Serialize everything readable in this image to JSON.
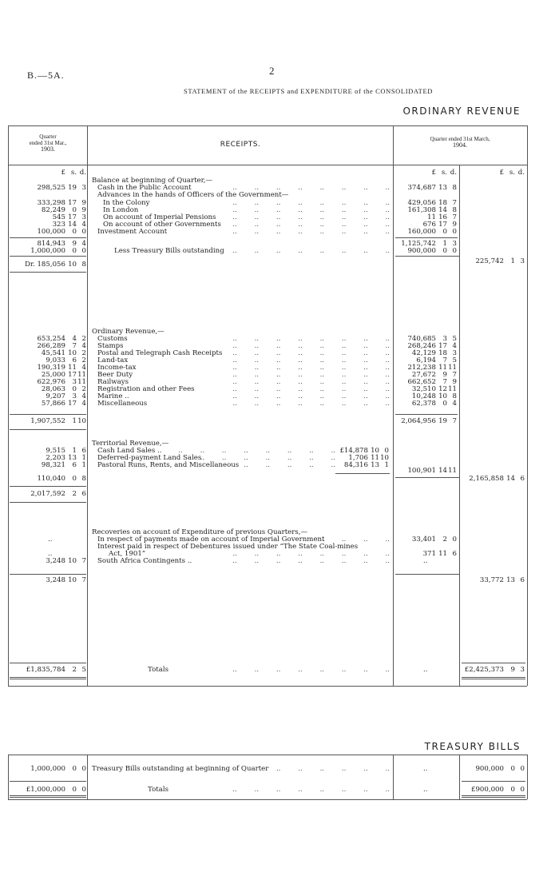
{
  "page": {
    "ref": "B.—5A.",
    "number": "2",
    "statement": "STATEMENT of the RECEIPTS and EXPENDITURE of the CONSOLIDATED",
    "section": "ORDINARY REVENUE"
  },
  "header": {
    "col1": [
      "Quarter",
      "ended 31st Mar.,",
      "1903."
    ],
    "col2": "RECEIPTS.",
    "col3": [
      "Quarter ended 31st March,",
      "1904."
    ],
    "currency": [
      "£",
      "s.",
      "d."
    ]
  },
  "rows": [
    {
      "label": "Balance at beginning of Quarter,—",
      "indent": 0
    },
    {
      "label": "Cash in the Public Account",
      "indent": 1,
      "dots": true,
      "c1": [
        "298,525",
        "19",
        "3"
      ],
      "c3": [
        "374,687",
        "13",
        "8"
      ]
    },
    {
      "label": "Advances in the hands of Officers of the Government—",
      "indent": 1
    },
    {
      "label": "In the Colony",
      "indent": 2,
      "dots": true,
      "c1": [
        "333,298",
        "17",
        "9"
      ],
      "c3": [
        "429,056",
        "18",
        "7"
      ]
    },
    {
      "label": "In London",
      "indent": 2,
      "dots": true,
      "c1": [
        "82,249",
        "0",
        "9"
      ],
      "c3": [
        "161,308",
        "14",
        "8"
      ]
    },
    {
      "label": "On account of Imperial Pensions",
      "indent": 2,
      "dots": true,
      "c1": [
        "545",
        "17",
        "3"
      ],
      "c3": [
        "11",
        "16",
        "7"
      ]
    },
    {
      "label": "On account of other Governments",
      "indent": 2,
      "dots": true,
      "c1": [
        "323",
        "14",
        "4"
      ],
      "c3": [
        "676",
        "17",
        "9"
      ]
    },
    {
      "label": "Investment Account",
      "indent": 1,
      "dots": true,
      "c1": [
        "100,000",
        "0",
        "0"
      ],
      "c3": [
        "160,000",
        "0",
        "0"
      ]
    },
    {
      "label": "",
      "c1": [
        "814,943",
        "9",
        "4"
      ],
      "c3": [
        "1,125,742",
        "1",
        "3"
      ]
    },
    {
      "label": "Less Treasury Bills outstanding",
      "indent": 4,
      "dots": true,
      "c1": [
        "1,000,000",
        "0",
        "0"
      ],
      "c3": [
        "900,000",
        "0",
        "0"
      ]
    },
    {
      "label": "",
      "c4": [
        "225,742",
        "1",
        "3"
      ]
    },
    {
      "label": "",
      "c1": [
        "Dr. 185,056",
        "10",
        "8"
      ]
    },
    {
      "label": "Ordinary Revenue,—",
      "indent": 0
    },
    {
      "label": "Customs",
      "indent": 1,
      "dots": true,
      "c1": [
        "653,254",
        "4",
        "2"
      ],
      "c3": [
        "740,685",
        "3",
        "5"
      ]
    },
    {
      "label": "Stamps",
      "indent": 1,
      "dots": true,
      "c1": [
        "266,289",
        "7",
        "4"
      ],
      "c3": [
        "268,246",
        "17",
        "4"
      ]
    },
    {
      "label": "Postal and Telegraph Cash Receipts",
      "indent": 1,
      "dots": true,
      "c1": [
        "45,541",
        "10",
        "2"
      ],
      "c3": [
        "42,129",
        "18",
        "3"
      ]
    },
    {
      "label": "Land-tax",
      "indent": 1,
      "dots": true,
      "c1": [
        "9,033",
        "6",
        "2"
      ],
      "c3": [
        "6,194",
        "7",
        "5"
      ]
    },
    {
      "label": "Income-tax",
      "indent": 1,
      "dots": true,
      "c1": [
        "190,319",
        "11",
        "4"
      ],
      "c3": [
        "212,238",
        "11",
        "11"
      ]
    },
    {
      "label": "Beer Duty",
      "indent": 1,
      "dots": true,
      "c1": [
        "25,000",
        "17",
        "11"
      ],
      "c3": [
        "27,672",
        "9",
        "7"
      ]
    },
    {
      "label": "Railways",
      "indent": 1,
      "dots": true,
      "c1": [
        "622,976",
        "3",
        "11"
      ],
      "c3": [
        "662,652",
        "7",
        "9"
      ]
    },
    {
      "label": "Registration and other Fees",
      "indent": 1,
      "dots": true,
      "c1": [
        "28,063",
        "0",
        "2"
      ],
      "c3": [
        "32,510",
        "12",
        "11"
      ]
    },
    {
      "label": "Marine ..",
      "indent": 1,
      "dots": true,
      "c1": [
        "9,207",
        "3",
        "4"
      ],
      "c3": [
        "10,248",
        "10",
        "8"
      ]
    },
    {
      "label": "Miscellaneous",
      "indent": 1,
      "dots": true,
      "c1": [
        "57,866",
        "17",
        "4"
      ],
      "c3": [
        "62,378",
        "0",
        "4"
      ]
    },
    {
      "label": "",
      "c1": [
        "1,907,552",
        "1",
        "10"
      ],
      "c3": [
        "2,064,956",
        "19",
        "7"
      ]
    },
    {
      "label": "Territorial Revenue,—",
      "indent": 0
    },
    {
      "label": "Cash Land Sales ..",
      "indent": 1,
      "dots": true,
      "c1": [
        "9,515",
        "1",
        "6"
      ],
      "c2": [
        "£14,878",
        "10",
        "0"
      ]
    },
    {
      "label": "Deferred-payment Land Sales",
      "indent": 1,
      "dots": true,
      "c1": [
        "2,203",
        "13",
        "1"
      ],
      "c2": [
        "1,706",
        "11",
        "10"
      ]
    },
    {
      "label": "Pastoral Runs, Rents, and Miscellaneous",
      "indent": 1,
      "dots": true,
      "c1": [
        "98,321",
        "6",
        "1"
      ],
      "c2": [
        "84,316",
        "13",
        "1"
      ]
    },
    {
      "label": "",
      "c3": [
        "100,901",
        "14",
        "11"
      ]
    },
    {
      "label": "",
      "c1": [
        "110,040",
        "0",
        "8"
      ],
      "c4": [
        "2,165,858",
        "14",
        "6"
      ]
    },
    {
      "label": "",
      "c1": [
        "2,017,592",
        "2",
        "6"
      ]
    },
    {
      "label": "Recoveries on account of Expenditure of previous Quarters,—",
      "indent": 0
    },
    {
      "label": "In respect of payments made on account of Imperial Government",
      "indent": 1,
      "dots": true,
      "c1n": "..",
      "c3": [
        "33,401",
        "2",
        "0"
      ]
    },
    {
      "label": "Interest paid in respect of Debentures issued under “The State Coal-mines",
      "indent": 1
    },
    {
      "label": "Act, 1901”",
      "indent": 3,
      "dots": true,
      "c1n": "..",
      "c3": [
        "371",
        "11",
        "6"
      ]
    },
    {
      "label": "South Africa Contingents ..",
      "indent": 1,
      "dots": true,
      "c1": [
        "3,248",
        "10",
        "7"
      ],
      "c3n": ".."
    },
    {
      "label": "",
      "c1": [
        "3,248",
        "10",
        "7"
      ],
      "c4": [
        "33,772",
        "13",
        "6"
      ]
    },
    {
      "label": "Totals",
      "indent": 10,
      "dots": true,
      "c1": [
        "£1,835,784",
        "2",
        "5"
      ],
      "c3n": "..",
      "c4": [
        "£2,425,373",
        "9",
        "3"
      ]
    }
  ],
  "treasury": {
    "title": "TREASURY BILLS",
    "rows": [
      {
        "label": "Treasury Bills outstanding at beginning of Quarter",
        "indent": 0,
        "dots": true,
        "c1": [
          "1,000,000",
          "0",
          "0"
        ],
        "c3n": "..",
        "c4": [
          "900,000",
          "0",
          "0"
        ]
      },
      {
        "label": "Totals",
        "indent": 10,
        "dots": true,
        "c1": [
          "£1,000,000",
          "0",
          "0"
        ],
        "c3n": "..",
        "c4": [
          "£900,000",
          "0",
          "0"
        ]
      }
    ]
  }
}
